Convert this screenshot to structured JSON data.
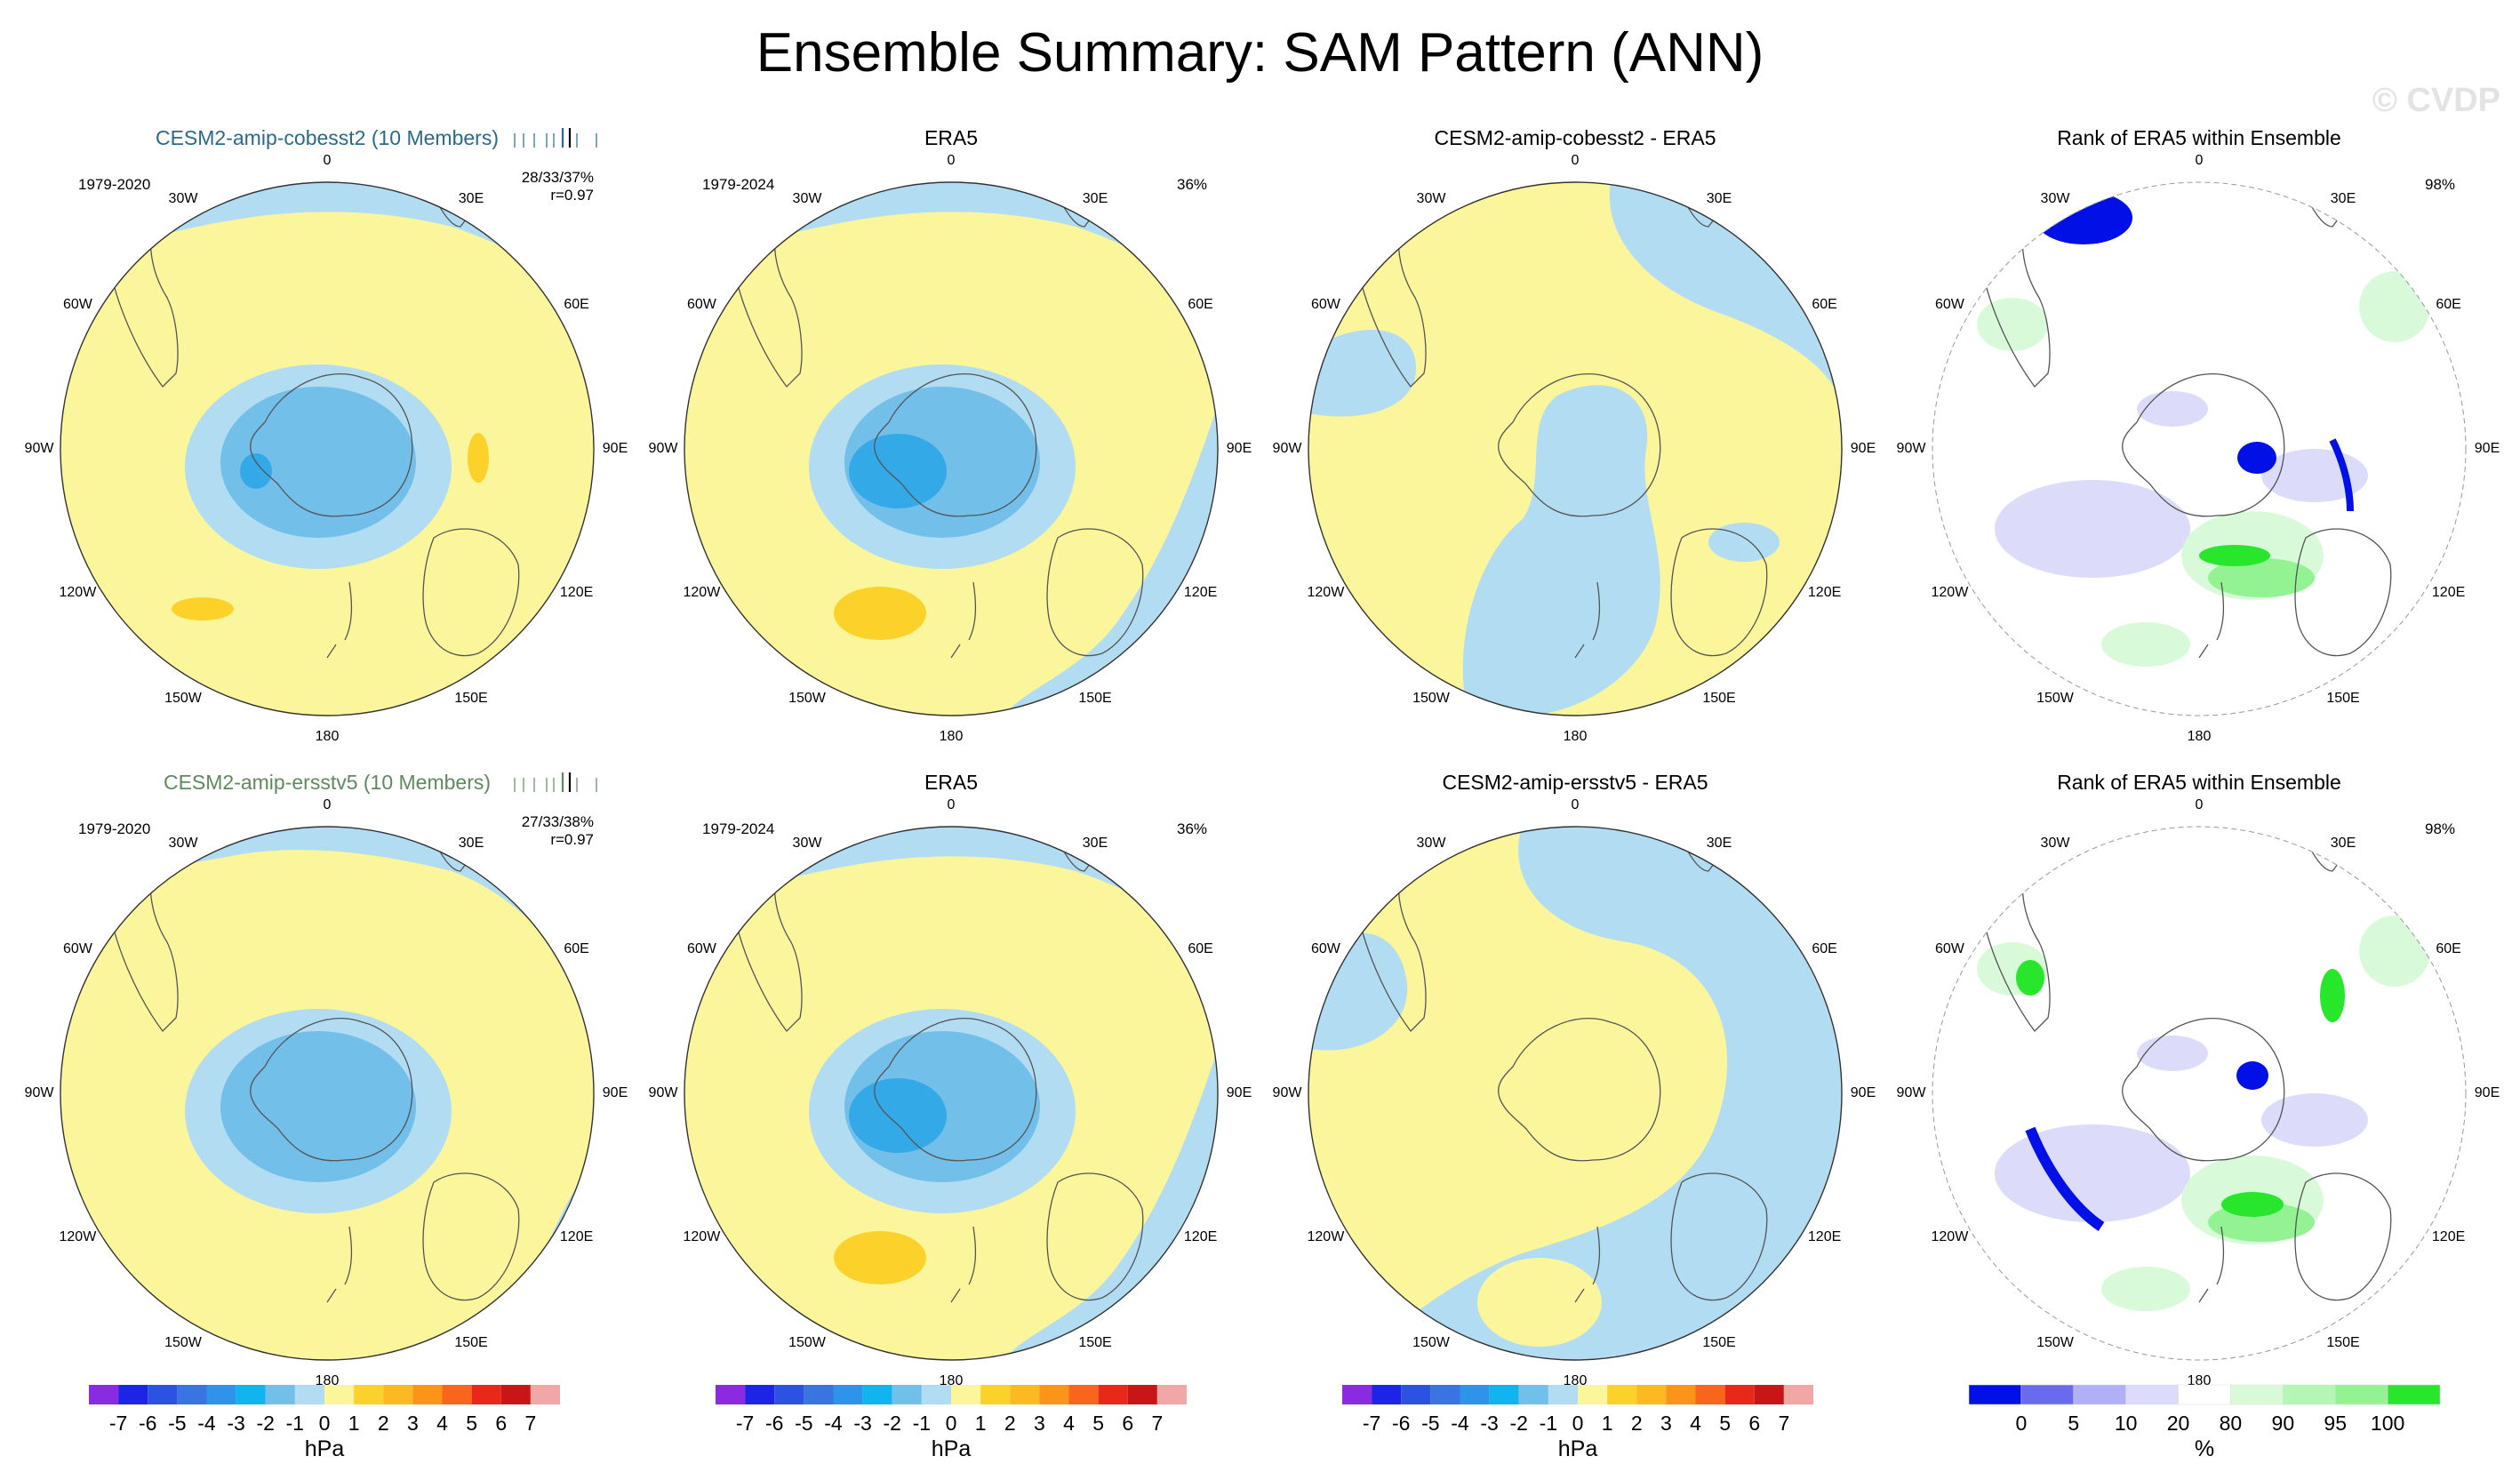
{
  "title": "Ensemble Summary: SAM Pattern (ANN)",
  "watermark": "© CVDP",
  "lon_labels": [
    "0",
    "30E",
    "60E",
    "90E",
    "120E",
    "150E",
    "180",
    "150W",
    "120W",
    "90W",
    "60W",
    "30W"
  ],
  "colors": {
    "ocean_yellow": "#fbf69c",
    "light_blue": "#b2dcf2",
    "mid_blue": "#72bfea",
    "deep_blue": "#33a9e7",
    "brown_orange": "#fcd22a",
    "rank_blue": "#0010e6",
    "rank_lavender": "#dcdcfa",
    "rank_green": "#27e62c",
    "rank_light_green": "#d9fad9",
    "rank_mid_green": "#93f393"
  },
  "rows": [
    {
      "panels": [
        {
          "title": "CESM2-amip-cobesst2 (10 Members)",
          "years": "1979-2020",
          "stats_line1": "28/33/37%",
          "stats_line2": "r=0.97",
          "kind": "model1"
        },
        {
          "title": "ERA5",
          "years": "1979-2024",
          "pct": "36%",
          "kind": "obs"
        },
        {
          "title": "CESM2-amip-cobesst2 - ERA5",
          "kind": "diff"
        },
        {
          "title": "Rank of ERA5 within Ensemble",
          "pct": "98%",
          "kind": "rank"
        }
      ]
    },
    {
      "panels": [
        {
          "title": "CESM2-amip-ersstv5 (10 Members)",
          "years": "1979-2020",
          "stats_line1": "27/33/38%",
          "stats_line2": "r=0.97",
          "kind": "model2"
        },
        {
          "title": "ERA5",
          "years": "1979-2024",
          "pct": "36%",
          "kind": "obs"
        },
        {
          "title": "CESM2-amip-ersstv5 - ERA5",
          "kind": "diff"
        },
        {
          "title": "Rank of ERA5 within Ensemble",
          "pct": "98%",
          "kind": "rank"
        }
      ]
    }
  ],
  "colorbar_hpa": {
    "units": "hPa",
    "labels": [
      "-7",
      "-6",
      "-5",
      "-4",
      "-3",
      "-2",
      "-1",
      "0",
      "1",
      "2",
      "3",
      "4",
      "5",
      "6",
      "7"
    ],
    "colors": [
      "#8a2be2",
      "#1d24e6",
      "#2b52e0",
      "#3a74e3",
      "#2e93ea",
      "#10b4ef",
      "#72bfea",
      "#b2dcf2",
      "#fbf69c",
      "#fcd22a",
      "#fdb922",
      "#fb9418",
      "#f9661b",
      "#e8291a",
      "#c81616",
      "#f2a7a7"
    ]
  },
  "colorbar_rank": {
    "units": "%",
    "labels": [
      "0",
      "5",
      "10",
      "20",
      "80",
      "90",
      "95",
      "100"
    ],
    "colors": [
      "#0010e6",
      "#6a6af0",
      "#b0b0f6",
      "#dcdcfa",
      "#ffffff",
      "#d9fad9",
      "#b5f6b5",
      "#93f393",
      "#27e62c"
    ]
  }
}
